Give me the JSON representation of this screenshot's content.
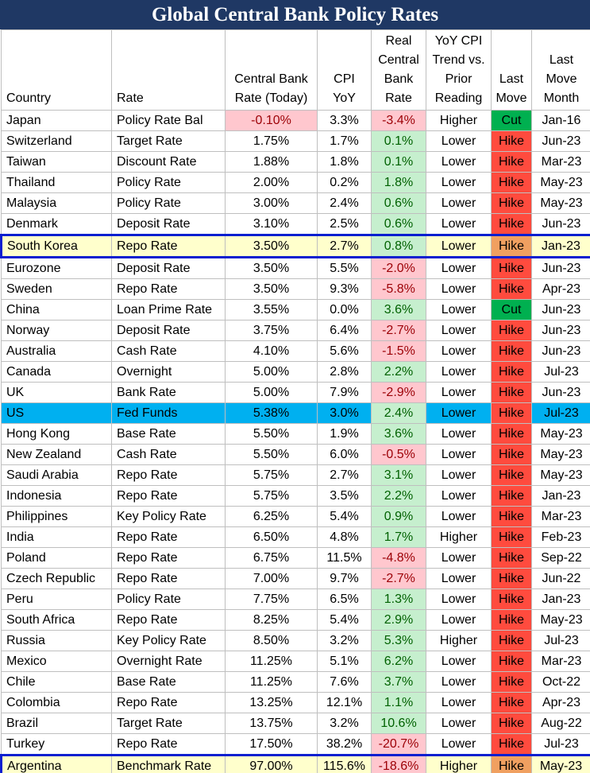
{
  "table": {
    "title": "Global Central Bank Policy Rates",
    "columns": [
      "Country",
      "Rate",
      "Central Bank\nRate (Today)",
      "CPI\nYoY",
      "Real\nCentral\nBank\nRate",
      "YoY CPI\nTrend vs.\nPrior\nReading",
      "Last\nMove",
      "Last\nMove\nMonth"
    ],
    "rows": [
      {
        "cells": [
          "Japan",
          "Policy Rate Bal",
          "-0.10%",
          "3.3%",
          "-3.4%",
          "Higher",
          "Cut",
          "Jan-16"
        ]
      },
      {
        "cells": [
          "Switzerland",
          "Target Rate",
          "1.75%",
          "1.7%",
          "0.1%",
          "Lower",
          "Hike",
          "Jun-23"
        ]
      },
      {
        "cells": [
          "Taiwan",
          "Discount Rate",
          "1.88%",
          "1.8%",
          "0.1%",
          "Lower",
          "Hike",
          "Mar-23"
        ]
      },
      {
        "cells": [
          "Thailand",
          "Policy Rate",
          "2.00%",
          "0.2%",
          "1.8%",
          "Lower",
          "Hike",
          "May-23"
        ]
      },
      {
        "cells": [
          "Malaysia",
          "Policy Rate",
          "3.00%",
          "2.4%",
          "0.6%",
          "Lower",
          "Hike",
          "May-23"
        ]
      },
      {
        "cells": [
          "Denmark",
          "Deposit Rate",
          "3.10%",
          "2.5%",
          "0.6%",
          "Lower",
          "Hike",
          "Jun-23"
        ]
      },
      {
        "cells": [
          "South Korea",
          "Repo Rate",
          "3.50%",
          "2.7%",
          "0.8%",
          "Lower",
          "Hike",
          "Jan-23"
        ],
        "style": "outlined"
      },
      {
        "cells": [
          "Eurozone",
          "Deposit Rate",
          "3.50%",
          "5.5%",
          "-2.0%",
          "Lower",
          "Hike",
          "Jun-23"
        ]
      },
      {
        "cells": [
          "Sweden",
          "Repo Rate",
          "3.50%",
          "9.3%",
          "-5.8%",
          "Lower",
          "Hike",
          "Apr-23"
        ]
      },
      {
        "cells": [
          "China",
          "Loan Prime Rate",
          "3.55%",
          "0.0%",
          "3.6%",
          "Lower",
          "Cut",
          "Jun-23"
        ]
      },
      {
        "cells": [
          "Norway",
          "Deposit Rate",
          "3.75%",
          "6.4%",
          "-2.7%",
          "Lower",
          "Hike",
          "Jun-23"
        ]
      },
      {
        "cells": [
          "Australia",
          "Cash Rate",
          "4.10%",
          "5.6%",
          "-1.5%",
          "Lower",
          "Hike",
          "Jun-23"
        ]
      },
      {
        "cells": [
          "Canada",
          "Overnight",
          "5.00%",
          "2.8%",
          "2.2%",
          "Lower",
          "Hike",
          "Jul-23"
        ]
      },
      {
        "cells": [
          "UK",
          "Bank Rate",
          "5.00%",
          "7.9%",
          "-2.9%",
          "Lower",
          "Hike",
          "Jun-23"
        ]
      },
      {
        "cells": [
          "US",
          "Fed Funds",
          "5.38%",
          "3.0%",
          "2.4%",
          "Lower",
          "Hike",
          "Jul-23"
        ],
        "style": "shaded"
      },
      {
        "cells": [
          "Hong Kong",
          "Base Rate",
          "5.50%",
          "1.9%",
          "3.6%",
          "Lower",
          "Hike",
          "May-23"
        ]
      },
      {
        "cells": [
          "New Zealand",
          "Cash Rate",
          "5.50%",
          "6.0%",
          "-0.5%",
          "Lower",
          "Hike",
          "May-23"
        ]
      },
      {
        "cells": [
          "Saudi Arabia",
          "Repo Rate",
          "5.75%",
          "2.7%",
          "3.1%",
          "Lower",
          "Hike",
          "May-23"
        ]
      },
      {
        "cells": [
          "Indonesia",
          "Repo Rate",
          "5.75%",
          "3.5%",
          "2.2%",
          "Lower",
          "Hike",
          "Jan-23"
        ]
      },
      {
        "cells": [
          "Philippines",
          "Key Policy Rate",
          "6.25%",
          "5.4%",
          "0.9%",
          "Lower",
          "Hike",
          "Mar-23"
        ]
      },
      {
        "cells": [
          "India",
          "Repo Rate",
          "6.50%",
          "4.8%",
          "1.7%",
          "Higher",
          "Hike",
          "Feb-23"
        ]
      },
      {
        "cells": [
          "Poland",
          "Repo Rate",
          "6.75%",
          "11.5%",
          "-4.8%",
          "Lower",
          "Hike",
          "Sep-22"
        ]
      },
      {
        "cells": [
          "Czech Republic",
          "Repo Rate",
          "7.00%",
          "9.7%",
          "-2.7%",
          "Lower",
          "Hike",
          "Jun-22"
        ]
      },
      {
        "cells": [
          "Peru",
          "Policy Rate",
          "7.75%",
          "6.5%",
          "1.3%",
          "Lower",
          "Hike",
          "Jan-23"
        ]
      },
      {
        "cells": [
          "South Africa",
          "Repo Rate",
          "8.25%",
          "5.4%",
          "2.9%",
          "Lower",
          "Hike",
          "May-23"
        ]
      },
      {
        "cells": [
          "Russia",
          "Key Policy Rate",
          "8.50%",
          "3.2%",
          "5.3%",
          "Higher",
          "Hike",
          "Jul-23"
        ]
      },
      {
        "cells": [
          "Mexico",
          "Overnight Rate",
          "11.25%",
          "5.1%",
          "6.2%",
          "Lower",
          "Hike",
          "Mar-23"
        ]
      },
      {
        "cells": [
          "Chile",
          "Base Rate",
          "11.25%",
          "7.6%",
          "3.7%",
          "Lower",
          "Hike",
          "Oct-22"
        ]
      },
      {
        "cells": [
          "Colombia",
          "Repo Rate",
          "13.25%",
          "12.1%",
          "1.1%",
          "Lower",
          "Hike",
          "Apr-23"
        ]
      },
      {
        "cells": [
          "Brazil",
          "Target Rate",
          "13.75%",
          "3.2%",
          "10.6%",
          "Lower",
          "Hike",
          "Aug-22"
        ]
      },
      {
        "cells": [
          "Turkey",
          "Repo Rate",
          "17.50%",
          "38.2%",
          "-20.7%",
          "Lower",
          "Hike",
          "Jul-23"
        ]
      },
      {
        "cells": [
          "Argentina",
          "Benchmark Rate",
          "97.00%",
          "115.6%",
          "-18.6%",
          "Higher",
          "Hike",
          "May-23"
        ],
        "style": "outlined"
      }
    ]
  }
}
